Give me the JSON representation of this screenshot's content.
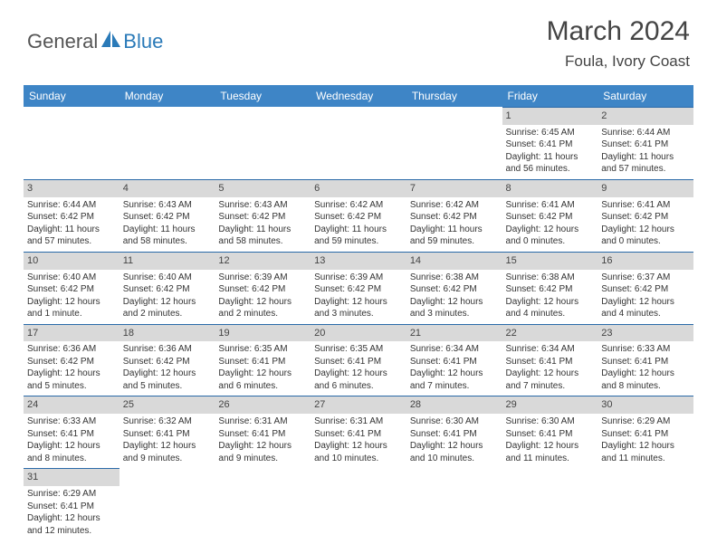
{
  "brand": {
    "part1": "General",
    "part2": "Blue"
  },
  "title": {
    "month": "March 2024",
    "location": "Foula, Ivory Coast"
  },
  "colors": {
    "header_bg": "#3e85c6",
    "header_text": "#ffffff",
    "daynum_bg": "#d9d9d9",
    "daynum_border_top": "#2a6aa8",
    "body_text": "#333333",
    "logo_blue": "#2a7ab8",
    "logo_gray": "#555555"
  },
  "weekdays": [
    "Sunday",
    "Monday",
    "Tuesday",
    "Wednesday",
    "Thursday",
    "Friday",
    "Saturday"
  ],
  "weeks": [
    [
      {
        "n": "",
        "sr": "",
        "ss": "",
        "dl": ""
      },
      {
        "n": "",
        "sr": "",
        "ss": "",
        "dl": ""
      },
      {
        "n": "",
        "sr": "",
        "ss": "",
        "dl": ""
      },
      {
        "n": "",
        "sr": "",
        "ss": "",
        "dl": ""
      },
      {
        "n": "",
        "sr": "",
        "ss": "",
        "dl": ""
      },
      {
        "n": "1",
        "sr": "Sunrise: 6:45 AM",
        "ss": "Sunset: 6:41 PM",
        "dl": "Daylight: 11 hours and 56 minutes."
      },
      {
        "n": "2",
        "sr": "Sunrise: 6:44 AM",
        "ss": "Sunset: 6:41 PM",
        "dl": "Daylight: 11 hours and 57 minutes."
      }
    ],
    [
      {
        "n": "3",
        "sr": "Sunrise: 6:44 AM",
        "ss": "Sunset: 6:42 PM",
        "dl": "Daylight: 11 hours and 57 minutes."
      },
      {
        "n": "4",
        "sr": "Sunrise: 6:43 AM",
        "ss": "Sunset: 6:42 PM",
        "dl": "Daylight: 11 hours and 58 minutes."
      },
      {
        "n": "5",
        "sr": "Sunrise: 6:43 AM",
        "ss": "Sunset: 6:42 PM",
        "dl": "Daylight: 11 hours and 58 minutes."
      },
      {
        "n": "6",
        "sr": "Sunrise: 6:42 AM",
        "ss": "Sunset: 6:42 PM",
        "dl": "Daylight: 11 hours and 59 minutes."
      },
      {
        "n": "7",
        "sr": "Sunrise: 6:42 AM",
        "ss": "Sunset: 6:42 PM",
        "dl": "Daylight: 11 hours and 59 minutes."
      },
      {
        "n": "8",
        "sr": "Sunrise: 6:41 AM",
        "ss": "Sunset: 6:42 PM",
        "dl": "Daylight: 12 hours and 0 minutes."
      },
      {
        "n": "9",
        "sr": "Sunrise: 6:41 AM",
        "ss": "Sunset: 6:42 PM",
        "dl": "Daylight: 12 hours and 0 minutes."
      }
    ],
    [
      {
        "n": "10",
        "sr": "Sunrise: 6:40 AM",
        "ss": "Sunset: 6:42 PM",
        "dl": "Daylight: 12 hours and 1 minute."
      },
      {
        "n": "11",
        "sr": "Sunrise: 6:40 AM",
        "ss": "Sunset: 6:42 PM",
        "dl": "Daylight: 12 hours and 2 minutes."
      },
      {
        "n": "12",
        "sr": "Sunrise: 6:39 AM",
        "ss": "Sunset: 6:42 PM",
        "dl": "Daylight: 12 hours and 2 minutes."
      },
      {
        "n": "13",
        "sr": "Sunrise: 6:39 AM",
        "ss": "Sunset: 6:42 PM",
        "dl": "Daylight: 12 hours and 3 minutes."
      },
      {
        "n": "14",
        "sr": "Sunrise: 6:38 AM",
        "ss": "Sunset: 6:42 PM",
        "dl": "Daylight: 12 hours and 3 minutes."
      },
      {
        "n": "15",
        "sr": "Sunrise: 6:38 AM",
        "ss": "Sunset: 6:42 PM",
        "dl": "Daylight: 12 hours and 4 minutes."
      },
      {
        "n": "16",
        "sr": "Sunrise: 6:37 AM",
        "ss": "Sunset: 6:42 PM",
        "dl": "Daylight: 12 hours and 4 minutes."
      }
    ],
    [
      {
        "n": "17",
        "sr": "Sunrise: 6:36 AM",
        "ss": "Sunset: 6:42 PM",
        "dl": "Daylight: 12 hours and 5 minutes."
      },
      {
        "n": "18",
        "sr": "Sunrise: 6:36 AM",
        "ss": "Sunset: 6:42 PM",
        "dl": "Daylight: 12 hours and 5 minutes."
      },
      {
        "n": "19",
        "sr": "Sunrise: 6:35 AM",
        "ss": "Sunset: 6:41 PM",
        "dl": "Daylight: 12 hours and 6 minutes."
      },
      {
        "n": "20",
        "sr": "Sunrise: 6:35 AM",
        "ss": "Sunset: 6:41 PM",
        "dl": "Daylight: 12 hours and 6 minutes."
      },
      {
        "n": "21",
        "sr": "Sunrise: 6:34 AM",
        "ss": "Sunset: 6:41 PM",
        "dl": "Daylight: 12 hours and 7 minutes."
      },
      {
        "n": "22",
        "sr": "Sunrise: 6:34 AM",
        "ss": "Sunset: 6:41 PM",
        "dl": "Daylight: 12 hours and 7 minutes."
      },
      {
        "n": "23",
        "sr": "Sunrise: 6:33 AM",
        "ss": "Sunset: 6:41 PM",
        "dl": "Daylight: 12 hours and 8 minutes."
      }
    ],
    [
      {
        "n": "24",
        "sr": "Sunrise: 6:33 AM",
        "ss": "Sunset: 6:41 PM",
        "dl": "Daylight: 12 hours and 8 minutes."
      },
      {
        "n": "25",
        "sr": "Sunrise: 6:32 AM",
        "ss": "Sunset: 6:41 PM",
        "dl": "Daylight: 12 hours and 9 minutes."
      },
      {
        "n": "26",
        "sr": "Sunrise: 6:31 AM",
        "ss": "Sunset: 6:41 PM",
        "dl": "Daylight: 12 hours and 9 minutes."
      },
      {
        "n": "27",
        "sr": "Sunrise: 6:31 AM",
        "ss": "Sunset: 6:41 PM",
        "dl": "Daylight: 12 hours and 10 minutes."
      },
      {
        "n": "28",
        "sr": "Sunrise: 6:30 AM",
        "ss": "Sunset: 6:41 PM",
        "dl": "Daylight: 12 hours and 10 minutes."
      },
      {
        "n": "29",
        "sr": "Sunrise: 6:30 AM",
        "ss": "Sunset: 6:41 PM",
        "dl": "Daylight: 12 hours and 11 minutes."
      },
      {
        "n": "30",
        "sr": "Sunrise: 6:29 AM",
        "ss": "Sunset: 6:41 PM",
        "dl": "Daylight: 12 hours and 11 minutes."
      }
    ],
    [
      {
        "n": "31",
        "sr": "Sunrise: 6:29 AM",
        "ss": "Sunset: 6:41 PM",
        "dl": "Daylight: 12 hours and 12 minutes."
      },
      {
        "n": "",
        "sr": "",
        "ss": "",
        "dl": ""
      },
      {
        "n": "",
        "sr": "",
        "ss": "",
        "dl": ""
      },
      {
        "n": "",
        "sr": "",
        "ss": "",
        "dl": ""
      },
      {
        "n": "",
        "sr": "",
        "ss": "",
        "dl": ""
      },
      {
        "n": "",
        "sr": "",
        "ss": "",
        "dl": ""
      },
      {
        "n": "",
        "sr": "",
        "ss": "",
        "dl": ""
      }
    ]
  ]
}
